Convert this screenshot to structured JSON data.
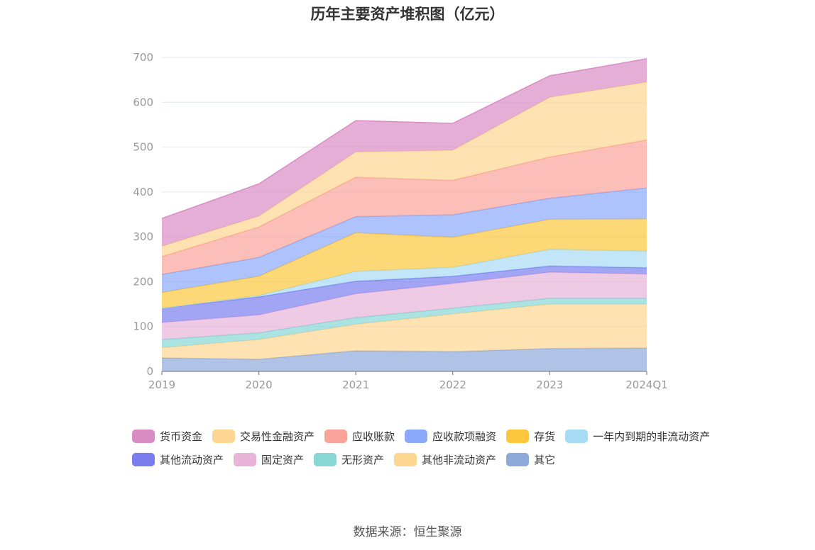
{
  "chart_data": {
    "type": "area",
    "stacked": true,
    "title": "历年主要资产堆积图（亿元）",
    "categories": [
      "2019",
      "2020",
      "2021",
      "2022",
      "2023",
      "2024Q1"
    ],
    "ylim": [
      0,
      700
    ],
    "yticks": [
      0,
      100,
      200,
      300,
      400,
      500,
      600,
      700
    ],
    "grid": true,
    "legend_position": "bottom",
    "series": [
      {
        "name": "其它",
        "color": "#8eaadb",
        "values": [
          30,
          27,
          46,
          44,
          51,
          52
        ]
      },
      {
        "name": "其他非流动资产",
        "color": "#fdd692",
        "values": [
          23,
          44,
          59,
          84,
          99,
          98
        ]
      },
      {
        "name": "无形资产",
        "color": "#88d6d6",
        "values": [
          18,
          15,
          15,
          13,
          13,
          13
        ]
      },
      {
        "name": "固定资产",
        "color": "#e8b4d8",
        "values": [
          38,
          40,
          53,
          55,
          58,
          54
        ]
      },
      {
        "name": "其他流动资产",
        "color": "#7b7def",
        "values": [
          32,
          40,
          28,
          16,
          14,
          14
        ]
      },
      {
        "name": "一年内到期的非流动资产",
        "color": "#a8dcf5",
        "values": [
          0,
          3,
          22,
          20,
          37,
          37
        ]
      },
      {
        "name": "存货",
        "color": "#fcc73c",
        "values": [
          35,
          43,
          86,
          67,
          67,
          72
        ]
      },
      {
        "name": "应收款项融资",
        "color": "#8ba8fa",
        "values": [
          40,
          42,
          36,
          50,
          47,
          69
        ]
      },
      {
        "name": "应收账款",
        "color": "#f9a39a",
        "values": [
          40,
          68,
          88,
          77,
          92,
          107
        ]
      },
      {
        "name": "交易性金融资产",
        "color": "#fdd692",
        "values": [
          23,
          24,
          56,
          67,
          133,
          129
        ]
      },
      {
        "name": "货币资金",
        "color": "#da8cc4",
        "values": [
          62,
          72,
          70,
          60,
          48,
          52
        ]
      }
    ],
    "legend_order": [
      "货币资金",
      "交易性金融资产",
      "应收账款",
      "应收款项融资",
      "存货",
      "一年内到期的非流动资产",
      "其他流动资产",
      "固定资产",
      "无形资产",
      "其他非流动资产",
      "其它"
    ]
  },
  "source": "数据来源：恒生聚源"
}
